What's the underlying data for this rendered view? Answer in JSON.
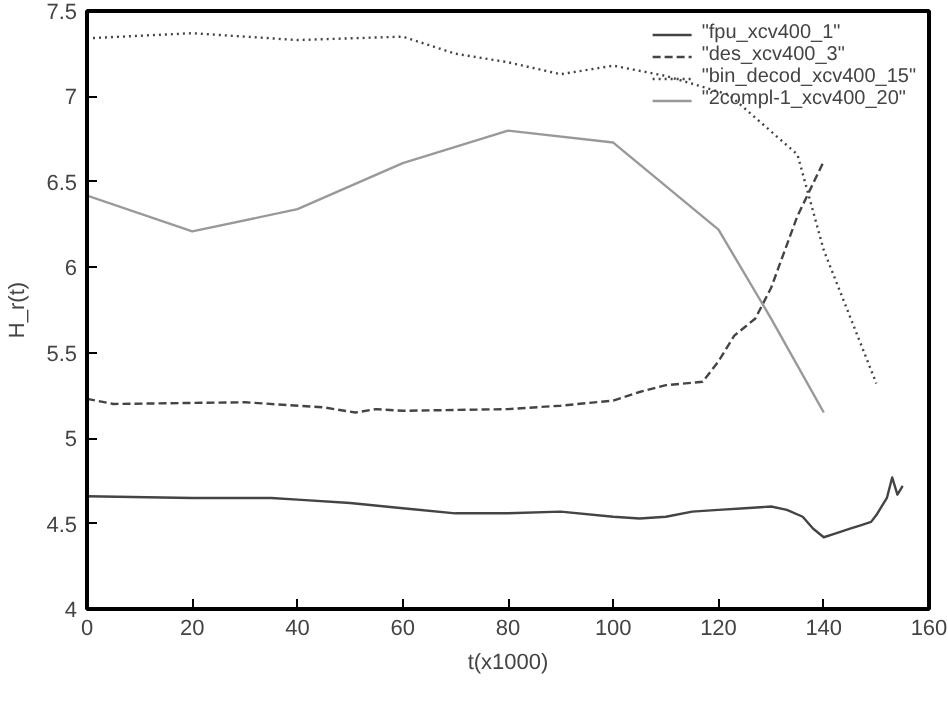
{
  "chart_data": {
    "type": "line",
    "xlabel": "t(x1000)",
    "ylabel": "H_r(t)",
    "xlim": [
      0,
      160
    ],
    "ylim": [
      4,
      7.5
    ],
    "xticks": [
      0,
      20,
      40,
      60,
      80,
      100,
      120,
      140,
      160
    ],
    "yticks": [
      4,
      4.5,
      5,
      5.5,
      6,
      6.5,
      7,
      7.5
    ],
    "grid": false,
    "legend": "top right",
    "marker": "none",
    "series": [
      {
        "name": "\"fpu_xcv400_1\"",
        "color": "#444444",
        "line_style": "solid",
        "x": [
          0,
          20,
          35,
          40,
          50,
          60,
          70,
          80,
          90,
          100,
          105,
          110,
          115,
          120,
          125,
          130,
          133,
          136,
          138,
          140,
          142,
          145,
          147,
          149,
          150,
          152,
          153,
          154,
          155
        ],
        "values": [
          4.66,
          4.65,
          4.65,
          4.64,
          4.62,
          4.59,
          4.56,
          4.56,
          4.57,
          4.54,
          4.53,
          4.54,
          4.57,
          4.58,
          4.59,
          4.6,
          4.58,
          4.54,
          4.47,
          4.42,
          4.44,
          4.47,
          4.49,
          4.51,
          4.55,
          4.65,
          4.77,
          4.67,
          4.72
        ]
      },
      {
        "name": "\"des_xcv400_3\"",
        "color": "#444444",
        "line_style": "dashed",
        "x": [
          0,
          5,
          30,
          45,
          51,
          55,
          60,
          80,
          90,
          100,
          105,
          110,
          117,
          120,
          123,
          127,
          130,
          135,
          140
        ],
        "values": [
          5.23,
          5.2,
          5.21,
          5.18,
          5.15,
          5.17,
          5.16,
          5.17,
          5.19,
          5.22,
          5.27,
          5.31,
          5.33,
          5.45,
          5.6,
          5.7,
          5.88,
          6.3,
          6.62
        ]
      },
      {
        "name": "\"bin_decod_xcv400_15\"",
        "color": "#444444",
        "line_style": "dotted",
        "x": [
          0,
          20,
          40,
          60,
          70,
          80,
          90,
          100,
          110,
          122,
          135,
          140,
          150
        ],
        "values": [
          7.34,
          7.37,
          7.33,
          7.35,
          7.25,
          7.2,
          7.13,
          7.18,
          7.12,
          7.01,
          6.66,
          6.1,
          5.32
        ]
      },
      {
        "name": "\"2compl-1_xcv400_20\"",
        "color": "#999999",
        "line_style": "solid",
        "x": [
          0,
          20,
          40,
          60,
          80,
          100,
          120,
          130,
          140
        ],
        "values": [
          6.42,
          6.21,
          6.34,
          6.61,
          6.8,
          6.73,
          6.22,
          5.7,
          5.15
        ]
      }
    ]
  }
}
